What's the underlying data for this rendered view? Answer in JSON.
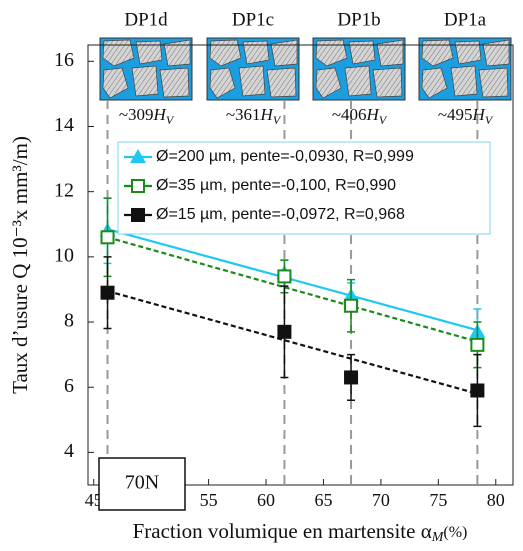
{
  "chart_data": {
    "type": "line",
    "y_label": "Taux d’usure Q 10⁻³x mm³/m)",
    "x_label": "Fraction volumique en martensite α",
    "x_label_sub": "M",
    "x_label_unit": "(%)",
    "annotation": "70N",
    "micrographs": [
      {
        "label": "DP1d",
        "hardness": "~309"
      },
      {
        "label": "DP1c",
        "hardness": "~361"
      },
      {
        "label": "DP1b",
        "hardness": "~406"
      },
      {
        "label": "DP1a",
        "hardness": "~495"
      }
    ],
    "hardness_unit": "H",
    "hardness_unit_sub": "V",
    "x": [
      46.2,
      61.6,
      67.4,
      78.4
    ],
    "series": [
      {
        "name": "Ø=200 µm, pente=-0,0930, R=0,999",
        "color": "#1ec8f0",
        "marker": "triangle",
        "line": "solid",
        "values": [
          10.8,
          9.5,
          8.8,
          7.7
        ],
        "errors": [
          1.0,
          0.4,
          0.4,
          0.7
        ],
        "fit": [
          10.85,
          7.75
        ]
      },
      {
        "name": "Ø=35 µm, pente=-0,100, R=0,990",
        "color": "#1a8a1a",
        "marker": "open-square",
        "line": "dashed",
        "values": [
          10.6,
          9.4,
          8.5,
          7.3
        ],
        "errors": [
          1.2,
          0.5,
          0.8,
          0.7
        ],
        "fit": [
          10.6,
          7.4
        ]
      },
      {
        "name": "Ø=15 µm, pente=-0,0972, R=0,968",
        "color": "#111111",
        "marker": "square",
        "line": "dashed",
        "values": [
          8.9,
          7.7,
          6.3,
          5.9
        ],
        "errors": [
          1.1,
          1.4,
          0.7,
          1.1
        ],
        "fit": [
          8.95,
          5.8
        ]
      }
    ],
    "xlim": [
      44.5,
      81.5
    ],
    "xticks": [
      45,
      50,
      55,
      60,
      65,
      70,
      75,
      80
    ],
    "ylim": [
      3,
      16.5
    ],
    "yticks": [
      4,
      6,
      8,
      10,
      12,
      14,
      16
    ]
  }
}
